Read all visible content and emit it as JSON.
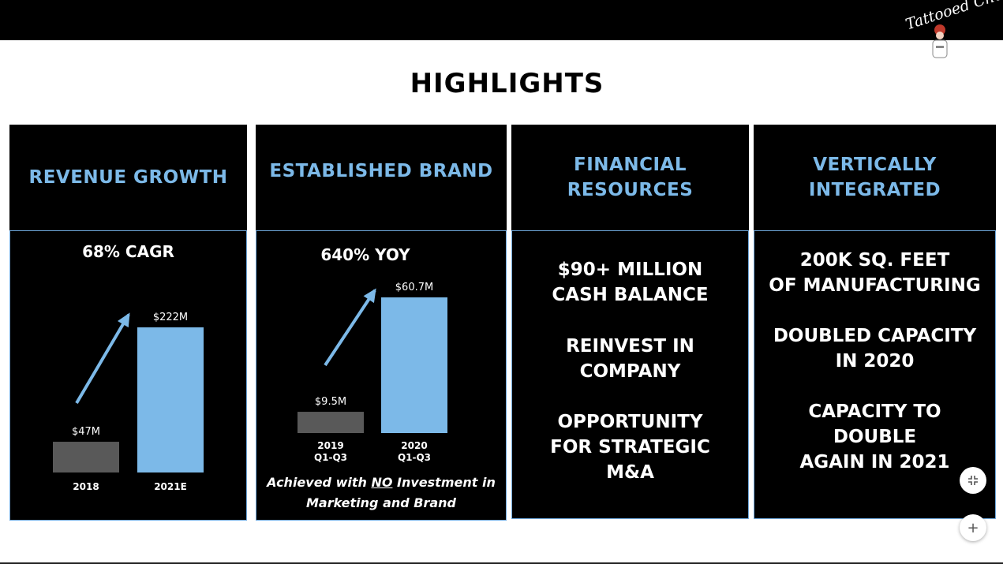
{
  "brand": {
    "logo_text": "Tattooed Chef"
  },
  "title": "HIGHLIGHTS",
  "colors": {
    "accent": "#7cb9e8",
    "bar_gray": "#595959",
    "bar_blue": "#7cb9e8"
  },
  "cards": {
    "revenue": {
      "heading": "REVENUE GROWTH",
      "metric": "68% CAGR"
    },
    "brand": {
      "heading": "ESTABLISHED BRAND",
      "metric": "640% YOY",
      "note_before": "Achieved with ",
      "note_emph": "NO",
      "note_after": " Investment in",
      "note_line2": "Marketing and Brand"
    },
    "financial": {
      "heading_line1": "FINANCIAL",
      "heading_line2": "RESOURCES",
      "lines": [
        "$90+ MILLION",
        "CASH BALANCE",
        "REINVEST IN",
        "COMPANY",
        "OPPORTUNITY",
        "FOR STRATEGIC",
        "M&A"
      ]
    },
    "vertical": {
      "heading_line1": "VERTICALLY",
      "heading_line2": "INTEGRATED",
      "lines": [
        "200K SQ. FEET",
        "OF MANUFACTURING",
        "DOUBLED CAPACITY",
        "IN 2020",
        "CAPACITY TO",
        "DOUBLE",
        "AGAIN IN 2021"
      ]
    }
  },
  "chart_data": [
    {
      "type": "bar",
      "categories": [
        "2018",
        "2021E"
      ],
      "values": [
        47,
        222
      ],
      "data_labels": [
        "$47M",
        "$222M"
      ],
      "title": "68% CAGR",
      "ylim": [
        0,
        222
      ]
    },
    {
      "type": "bar",
      "categories": [
        "2019 Q1-Q3",
        "2020 Q1-Q3"
      ],
      "category_lines": [
        [
          "2019",
          "Q1-Q3"
        ],
        [
          "2020",
          "Q1-Q3"
        ]
      ],
      "values": [
        9.5,
        60.7
      ],
      "data_labels": [
        "$9.5M",
        "$60.7M"
      ],
      "title": "640% YOY",
      "ylim": [
        0,
        60.7
      ]
    }
  ],
  "controls": {
    "fit_icon": "fit-screen-icon",
    "zoom_in_icon": "zoom-in-icon",
    "zoom_in_label": "+"
  }
}
